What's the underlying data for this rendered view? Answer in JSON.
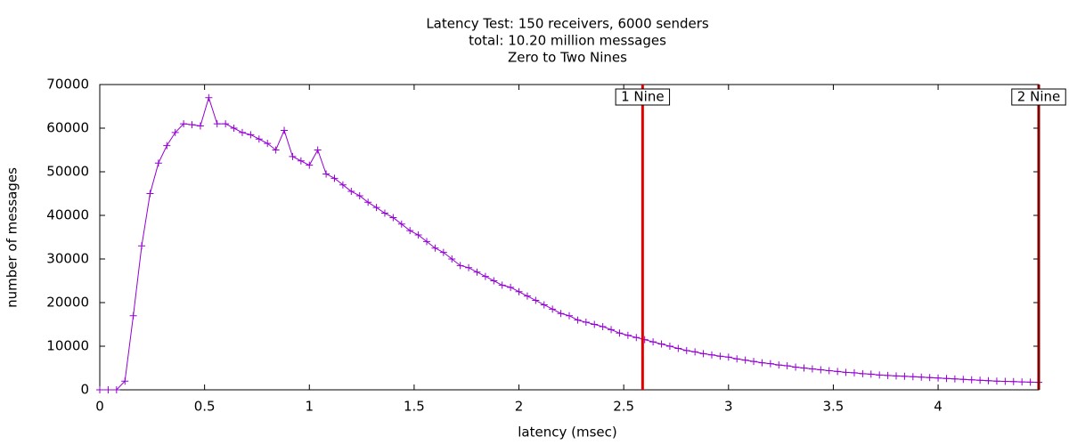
{
  "chart_data": {
    "type": "line",
    "title": [
      "Latency Test: 150 receivers, 6000 senders",
      "total: 10.20 million messages",
      "Zero to Two Nines"
    ],
    "xlabel": "latency (msec)",
    "ylabel": "number of messages",
    "xlim": [
      0,
      4.48
    ],
    "ylim": [
      0,
      70000
    ],
    "xticks": [
      0,
      0.5,
      1,
      1.5,
      2,
      2.5,
      3,
      3.5,
      4
    ],
    "yticks": [
      0,
      10000,
      20000,
      30000,
      40000,
      50000,
      60000,
      70000
    ],
    "x": [
      0,
      0.04,
      0.08,
      0.12,
      0.16,
      0.2,
      0.24,
      0.28,
      0.32,
      0.36,
      0.4,
      0.44,
      0.48,
      0.52,
      0.56,
      0.6,
      0.64,
      0.68,
      0.72,
      0.76,
      0.8,
      0.84,
      0.88,
      0.92,
      0.96,
      1,
      1.04,
      1.08,
      1.12,
      1.16,
      1.2,
      1.24,
      1.28,
      1.32,
      1.36,
      1.4,
      1.44,
      1.48,
      1.52,
      1.56,
      1.6,
      1.64,
      1.68,
      1.72,
      1.76,
      1.8,
      1.84,
      1.88,
      1.92,
      1.96,
      2,
      2.04,
      2.08,
      2.12,
      2.16,
      2.2,
      2.24,
      2.28,
      2.32,
      2.36,
      2.4,
      2.44,
      2.48,
      2.52,
      2.56,
      2.6,
      2.64,
      2.68,
      2.72,
      2.76,
      2.8,
      2.84,
      2.88,
      2.92,
      2.96,
      3,
      3.04,
      3.08,
      3.12,
      3.16,
      3.2,
      3.24,
      3.28,
      3.32,
      3.36,
      3.4,
      3.44,
      3.48,
      3.52,
      3.56,
      3.6,
      3.64,
      3.68,
      3.72,
      3.76,
      3.8,
      3.84,
      3.88,
      3.92,
      3.96,
      4,
      4.04,
      4.08,
      4.12,
      4.16,
      4.2,
      4.24,
      4.28,
      4.32,
      4.36,
      4.4,
      4.44,
      4.48
    ],
    "series": [
      {
        "color": "#9400d3",
        "values": [
          0,
          0,
          0,
          2000,
          17000,
          33000,
          45000,
          52000,
          56000,
          59000,
          61000,
          60800,
          60500,
          67000,
          61000,
          61000,
          60000,
          59000,
          58500,
          57500,
          56500,
          55000,
          59500,
          53500,
          52500,
          51500,
          55000,
          49500,
          48500,
          47000,
          45500,
          44500,
          43000,
          41800,
          40500,
          39500,
          38000,
          36500,
          35500,
          34000,
          32500,
          31500,
          30000,
          28500,
          28000,
          27000,
          26000,
          25000,
          24000,
          23500,
          22500,
          21500,
          20500,
          19500,
          18500,
          17500,
          17000,
          16000,
          15500,
          15000,
          14500,
          13800,
          13000,
          12500,
          12000,
          11500,
          11000,
          10500,
          10000,
          9500,
          9000,
          8700,
          8300,
          8000,
          7700,
          7500,
          7100,
          6800,
          6500,
          6200,
          6000,
          5700,
          5500,
          5200,
          5000,
          4800,
          4600,
          4400,
          4200,
          4000,
          3900,
          3700,
          3600,
          3400,
          3300,
          3200,
          3100,
          3000,
          2900,
          2800,
          2700,
          2600,
          2500,
          2400,
          2300,
          2200,
          2100,
          2000,
          1950,
          1900,
          1800,
          1750,
          1700
        ]
      }
    ],
    "vlines": [
      {
        "label": "1 Nine",
        "x": 2.59,
        "color": "#e00000"
      },
      {
        "label": "2 Nine",
        "x": 4.48,
        "color": "#800000"
      }
    ]
  }
}
